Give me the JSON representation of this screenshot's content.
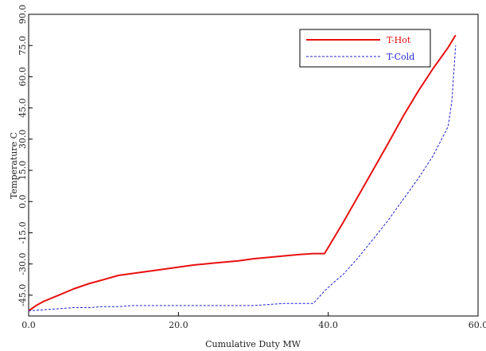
{
  "chart_data": {
    "type": "line",
    "title": "",
    "xlabel": "Cumulative Duty  MW",
    "ylabel": "Temperature C",
    "xlim": [
      0,
      60
    ],
    "ylim": [
      -55,
      90
    ],
    "xticks": [
      0,
      20,
      40,
      60
    ],
    "xtick_labels": [
      "0.0",
      "20.0",
      "40.0",
      "60.0"
    ],
    "yticks": [
      -45,
      -30,
      -15,
      0,
      15,
      30,
      45,
      60,
      75,
      90
    ],
    "ytick_labels": [
      "-45.0",
      "-30.0",
      "-15.0",
      "0.0",
      "15.0",
      "30.0",
      "45.0",
      "60.0",
      "75.0",
      "90.0"
    ],
    "grid": false,
    "legend_position": "top-right",
    "series": [
      {
        "name": "T-Hot",
        "color": "#e81010",
        "style": "solid",
        "x": [
          0,
          1,
          2,
          4,
          6,
          8,
          10,
          12,
          15,
          18,
          20,
          22,
          25,
          28,
          30,
          33,
          36,
          38,
          39.5,
          42,
          45,
          48,
          50,
          52,
          54,
          55,
          56,
          57
        ],
        "y": [
          -52.5,
          -50,
          -48,
          -45,
          -42,
          -39.5,
          -37.5,
          -35.5,
          -34,
          -32.5,
          -31.5,
          -30.5,
          -29.5,
          -28.5,
          -27.5,
          -26.5,
          -25.5,
          -25,
          -25,
          -10,
          9,
          28,
          41,
          53,
          64,
          69,
          74,
          80
        ]
      },
      {
        "name": "T-Cold",
        "color": "#1f1fd6",
        "style": "dashed",
        "x": [
          0,
          2,
          4,
          6,
          8,
          10,
          12,
          14,
          16,
          20,
          25,
          28,
          30,
          32,
          34,
          36,
          37,
          38,
          39.5,
          41,
          42,
          44,
          46,
          48,
          50,
          52,
          54,
          55,
          56,
          56.5,
          57
        ],
        "y": [
          -52.5,
          -52,
          -51.5,
          -51,
          -51,
          -50.5,
          -50.5,
          -50,
          -50,
          -50,
          -50,
          -50,
          -50,
          -49.5,
          -49,
          -49,
          -49,
          -49,
          -43,
          -38,
          -35,
          -27,
          -18,
          -9,
          1,
          11,
          22,
          29,
          36,
          48,
          75
        ]
      }
    ]
  }
}
